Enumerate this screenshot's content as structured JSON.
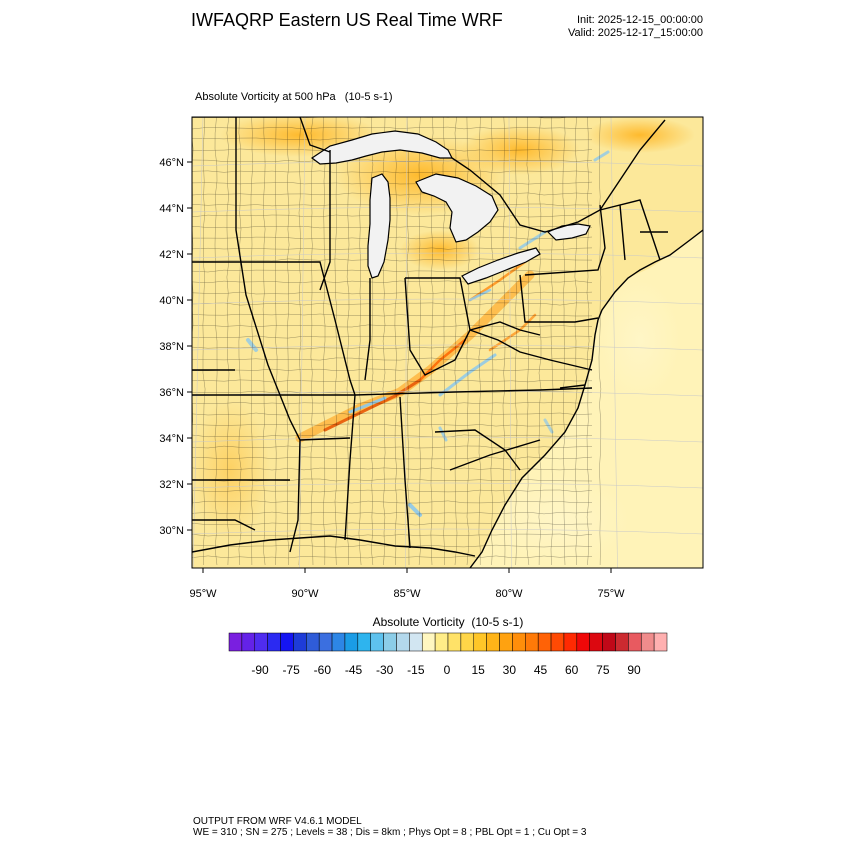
{
  "header": {
    "title": "IWFAQRP Eastern US Real Time WRF",
    "init": "Init: 2025-12-15_00:00:00",
    "valid": "Valid: 2025-12-17_15:00:00"
  },
  "field_label": "Absolute Vorticity at 500 hPa   (10-5 s-1)",
  "map": {
    "lat_ticks": [
      {
        "lat": 46,
        "label": "46°N"
      },
      {
        "lat": 44,
        "label": "44°N"
      },
      {
        "lat": 42,
        "label": "42°N"
      },
      {
        "lat": 40,
        "label": "40°N"
      },
      {
        "lat": 38,
        "label": "38°N"
      },
      {
        "lat": 36,
        "label": "36°N"
      },
      {
        "lat": 34,
        "label": "34°N"
      },
      {
        "lat": 32,
        "label": "32°N"
      },
      {
        "lat": 30,
        "label": "30°N"
      }
    ],
    "lon_ticks": [
      {
        "lon": -95,
        "label": "95°W"
      },
      {
        "lon": -90,
        "label": "90°W"
      },
      {
        "lon": -85,
        "label": "85°W"
      },
      {
        "lon": -80,
        "label": "80°W"
      },
      {
        "lon": -75,
        "label": "75°W"
      }
    ],
    "base_color": "#fce89a",
    "ocean_color": "#fff3b8"
  },
  "colorbar": {
    "title": "Absolute Vorticity  (10-5 s-1)",
    "colors": [
      "#7a1fe0",
      "#6422e8",
      "#4f2cf0",
      "#2b2af2",
      "#1515f2",
      "#1e3cd8",
      "#2f5cd8",
      "#3b6fe0",
      "#2d86e6",
      "#1a9ce6",
      "#2eb4ee",
      "#5ec2ee",
      "#8ccde8",
      "#b3d8ec",
      "#d2e6f2",
      "#fff7c0",
      "#ffed88",
      "#ffe268",
      "#ffd648",
      "#ffc628",
      "#ffb418",
      "#ffa210",
      "#ff8e0a",
      "#ff7a08",
      "#ff6206",
      "#ff4a04",
      "#ff2a02",
      "#f00808",
      "#dc0810",
      "#c00818",
      "#cc2a30",
      "#e85a60",
      "#f08c8c",
      "#ffb0b0"
    ],
    "tick_labels": [
      "-90",
      "-75",
      "-60",
      "-45",
      "-30",
      "-15",
      "0",
      "15",
      "30",
      "45",
      "60",
      "75",
      "90"
    ]
  },
  "footer": {
    "line1": "OUTPUT FROM WRF V4.6.1 MODEL",
    "line2": "WE = 310 ; SN = 275 ; Levels = 38 ; Dis = 8km ; Phys Opt = 8 ; PBL Opt = 1 ; Cu Opt = 3"
  }
}
